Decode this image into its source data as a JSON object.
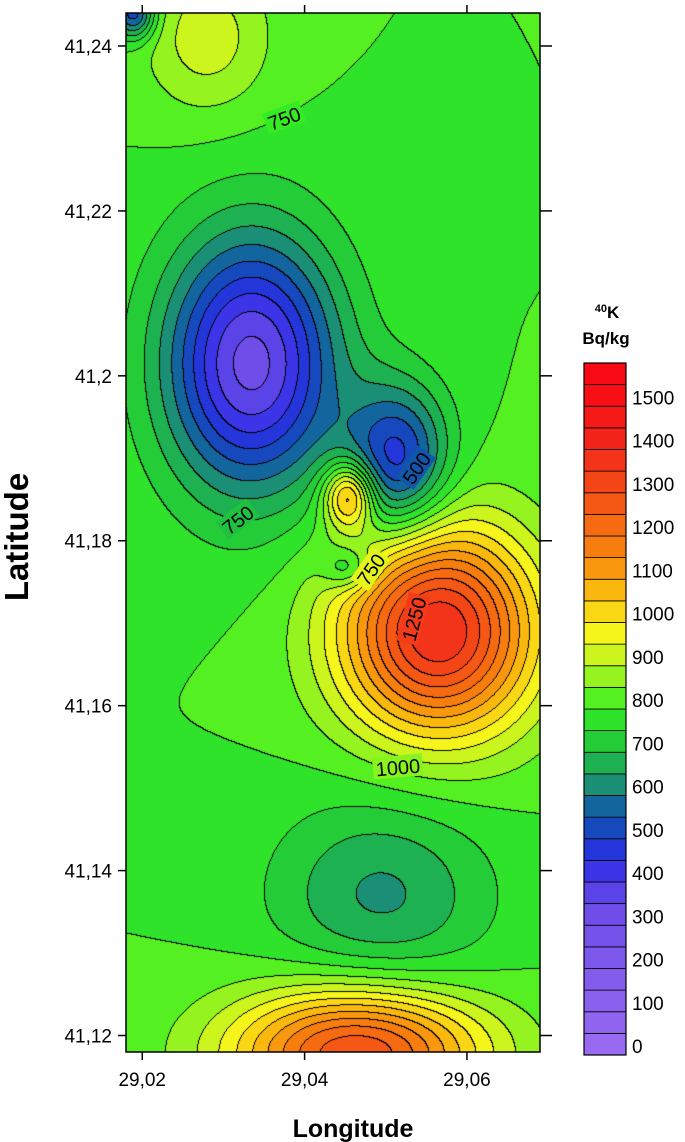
{
  "chart_data": {
    "type": "contour",
    "xlabel": "Longitude",
    "ylabel": "Latitude",
    "xlim": [
      29.018,
      29.069
    ],
    "ylim": [
      41.118,
      41.244
    ],
    "x_ticks": [
      {
        "value": 29.02,
        "label": "29,02"
      },
      {
        "value": 29.04,
        "label": "29,04"
      },
      {
        "value": 29.06,
        "label": "29,06"
      }
    ],
    "y_ticks": [
      {
        "value": 41.12,
        "label": "41,12"
      },
      {
        "value": 41.14,
        "label": "41,14"
      },
      {
        "value": 41.16,
        "label": "41,16"
      },
      {
        "value": 41.18,
        "label": "41,18"
      },
      {
        "value": 41.2,
        "label": "41,2"
      },
      {
        "value": 41.22,
        "label": "41,22"
      },
      {
        "value": 41.24,
        "label": "41,24"
      }
    ],
    "contour_step": 50,
    "contour_labels": [
      {
        "text": "750",
        "lon": 29.0375,
        "lat": 41.2312,
        "angle": -20
      },
      {
        "text": "500",
        "lon": 29.0538,
        "lat": 41.1888,
        "angle": -55
      },
      {
        "text": "750",
        "lon": 29.0318,
        "lat": 41.1825,
        "angle": -38
      },
      {
        "text": "750",
        "lon": 29.0482,
        "lat": 41.1765,
        "angle": -55
      },
      {
        "text": "1250",
        "lon": 29.0535,
        "lat": 41.1705,
        "angle": -75
      },
      {
        "text": "1000",
        "lon": 29.0515,
        "lat": 41.1525,
        "angle": -5
      }
    ],
    "field_sources": [
      {
        "lon": 29.0335,
        "lat": 41.2015,
        "value": 330,
        "sx": 0.0075,
        "sy": 0.011
      },
      {
        "lon": 29.0515,
        "lat": 41.1895,
        "value": 470,
        "sx": 0.0045,
        "sy": 0.0065
      },
      {
        "lon": 29.0455,
        "lat": 41.1855,
        "value": 1150,
        "sx": 0.0022,
        "sy": 0.0028
      },
      {
        "lon": 29.0455,
        "lat": 41.1765,
        "value": 650,
        "sx": 0.0022,
        "sy": 0.0018
      },
      {
        "lon": 29.0565,
        "lat": 41.169,
        "value": 1400,
        "sx": 0.0085,
        "sy": 0.009
      },
      {
        "lon": 29.0495,
        "lat": 41.137,
        "value": 640,
        "sx": 0.0095,
        "sy": 0.0085
      },
      {
        "lon": 29.0465,
        "lat": 41.118,
        "value": 1300,
        "sx": 0.011,
        "sy": 0.0055
      },
      {
        "lon": 29.028,
        "lat": 41.241,
        "value": 930,
        "sx": 0.0055,
        "sy": 0.0065
      },
      {
        "lon": 29.019,
        "lat": 41.244,
        "value": 500,
        "sx": 0.0018,
        "sy": 0.0022
      }
    ],
    "field_background": 800,
    "legend": {
      "title_sup": "40",
      "title_main": "K",
      "unit": "Bq/kg",
      "min": 0,
      "max": 1550,
      "step": 50,
      "tick_labels": [
        "0",
        "100",
        "200",
        "300",
        "400",
        "500",
        "600",
        "700",
        "800",
        "900",
        "1000",
        "1100",
        "1200",
        "1300",
        "1400",
        "1500"
      ],
      "tick_values": [
        0,
        100,
        200,
        300,
        400,
        500,
        600,
        700,
        800,
        900,
        1000,
        1100,
        1200,
        1300,
        1400,
        1500
      ]
    },
    "colormap": [
      {
        "v": 0,
        "c": "#9b6cf2"
      },
      {
        "v": 350,
        "c": "#6a4be8"
      },
      {
        "v": 450,
        "c": "#2b2de6"
      },
      {
        "v": 550,
        "c": "#0f52b0"
      },
      {
        "v": 625,
        "c": "#1b8f76"
      },
      {
        "v": 700,
        "c": "#1fc23e"
      },
      {
        "v": 800,
        "c": "#33ee22"
      },
      {
        "v": 900,
        "c": "#b6f51e"
      },
      {
        "v": 975,
        "c": "#f6f51b"
      },
      {
        "v": 1050,
        "c": "#fbc810"
      },
      {
        "v": 1150,
        "c": "#f8880d"
      },
      {
        "v": 1250,
        "c": "#f56012"
      },
      {
        "v": 1400,
        "c": "#f22a1c"
      },
      {
        "v": 1550,
        "c": "#f80a14"
      }
    ]
  }
}
